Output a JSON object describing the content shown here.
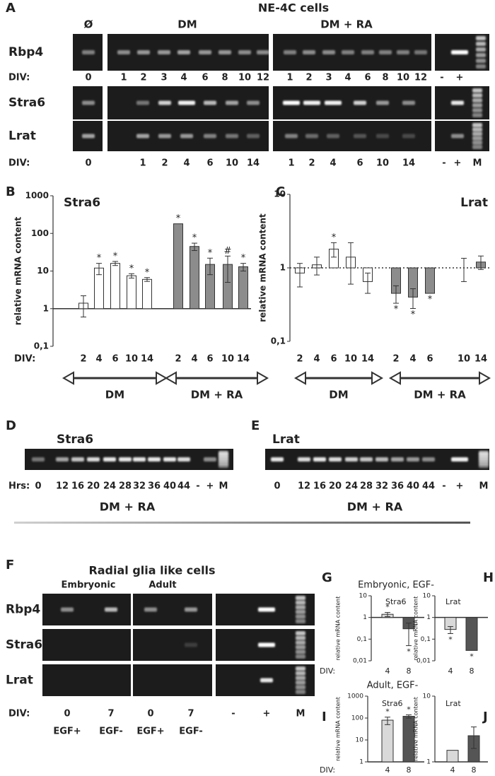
{
  "gels": {
    "A": {
      "letter": "A",
      "title": "NE-4C cells",
      "headers": [
        "Ø",
        "DM",
        "DM + RA"
      ],
      "rows": [
        "Rbp4",
        "Stra6",
        "Lrat"
      ],
      "lane_prefix": "DIV:",
      "lanes_top": [
        "0",
        "1",
        "2",
        "3",
        "4",
        "6",
        "8",
        "10",
        "12",
        "1",
        "2",
        "3",
        "4",
        "6",
        "8",
        "10",
        "12",
        "-",
        "+"
      ],
      "lanes_bottom": [
        "0",
        "1",
        "2",
        "4",
        "6",
        "10",
        "14",
        "1",
        "2",
        "4",
        "6",
        "10",
        "14",
        "-",
        "+",
        "M"
      ]
    },
    "D": {
      "letter": "D",
      "title": "Stra6",
      "lane_prefix": "Hrs:",
      "lanes": [
        "0",
        "12",
        "16",
        "20",
        "24",
        "28",
        "32",
        "36",
        "40",
        "44",
        "-",
        "+",
        "M"
      ],
      "condition": "DM + RA"
    },
    "E": {
      "letter": "E",
      "title": "Lrat",
      "lanes": [
        "0",
        "12",
        "16",
        "20",
        "24",
        "28",
        "32",
        "36",
        "40",
        "44",
        "-",
        "+",
        "M"
      ],
      "condition": "DM + RA"
    },
    "F": {
      "letter": "F",
      "title": "Radial glia like cells",
      "headers": [
        "Embryonic",
        "Adult"
      ],
      "rows": [
        "Rbp4",
        "Stra6",
        "Lrat"
      ],
      "lane_prefix": "DIV:",
      "lanes": [
        "0",
        "7",
        "0",
        "7",
        "-",
        "+",
        "M"
      ],
      "treatments": [
        "EGF+",
        "EGF-",
        "EGF+",
        "EGF-"
      ]
    }
  },
  "chart_data": [
    {
      "type": "bar",
      "letter": "B",
      "title": "Stra6",
      "ylabel": "relative mRNA content",
      "x_label": "DIV:",
      "log_scale": true,
      "ylim": [
        0.1,
        1000
      ],
      "yticks": [
        {
          "value": 0.1,
          "label": "0,1"
        },
        1,
        10,
        100,
        1000
      ],
      "baseline": 1,
      "categories": [
        "2",
        "4",
        "6",
        "10",
        "14"
      ],
      "series": [
        {
          "name": "DM",
          "color": "#ffffff",
          "values": [
            1.4,
            12,
            16,
            7.5,
            6
          ],
          "errors": [
            0.8,
            4,
            2,
            1,
            0.7
          ],
          "annotations": [
            null,
            "*",
            "*",
            "*",
            "*"
          ]
        },
        {
          "name": "DM + RA",
          "color": "#8c8c8c",
          "values": [
            180,
            45,
            15,
            15,
            13
          ],
          "errors": [
            null,
            10,
            7,
            10,
            3
          ],
          "annotations": [
            "*",
            "*",
            "*",
            "#",
            "*"
          ]
        }
      ]
    },
    {
      "type": "bar",
      "letter": "C",
      "title": "Lrat",
      "ylabel": "relative mRNA content",
      "log_scale": true,
      "ylim": [
        0.1,
        10
      ],
      "yticks": [
        {
          "value": 0.1,
          "label": "0,1"
        },
        1,
        10
      ],
      "baseline": 1,
      "categories": [
        "2",
        "4",
        "6",
        "10",
        "14"
      ],
      "series": [
        {
          "name": "DM",
          "color": "#ffffff",
          "values": [
            0.85,
            1.1,
            1.8,
            1.4,
            0.65
          ],
          "errors": [
            0.3,
            0.3,
            0.4,
            0.8,
            0.2
          ],
          "annotations": [
            null,
            null,
            "*",
            null,
            null
          ]
        },
        {
          "name": "DM + RA",
          "color": "#8c8c8c",
          "values": [
            0.45,
            0.4,
            0.45,
            1,
            1.2
          ],
          "errors": [
            0.12,
            0.12,
            null,
            0.35,
            0.25
          ],
          "annotations": [
            "*",
            "*",
            "*",
            null,
            null
          ]
        }
      ]
    },
    {
      "type": "bar",
      "letter": "G",
      "header": "Embryonic, EGF-",
      "title": "Stra6",
      "ylabel": "relative mRNA content",
      "x_label": "DIV:",
      "log_scale": true,
      "ylim": [
        0.01,
        10
      ],
      "yticks": [
        {
          "value": 0.01,
          "label": "0,01"
        },
        {
          "value": 0.1,
          "label": "0,1"
        },
        1,
        10
      ],
      "baseline": 1,
      "categories": [
        "4",
        "8"
      ],
      "colors": [
        "#d9d9d9",
        "#555555"
      ],
      "values": [
        1.4,
        0.3
      ],
      "errors": [
        0.3,
        0.25
      ],
      "annotations": [
        "*",
        "*"
      ]
    },
    {
      "type": "bar",
      "letter": "H",
      "title": "Lrat",
      "ylabel": "relative mRNA content",
      "log_scale": true,
      "ylim": [
        0.01,
        10
      ],
      "yticks": [
        {
          "value": 0.01,
          "label": "0,01"
        },
        {
          "value": 0.1,
          "label": "0,1"
        },
        1,
        10
      ],
      "baseline": 1,
      "categories": [
        "4",
        "8"
      ],
      "colors": [
        "#d9d9d9",
        "#555555"
      ],
      "values": [
        0.28,
        0.03
      ],
      "errors": [
        0.1,
        null
      ],
      "annotations": [
        "*",
        "*"
      ]
    },
    {
      "type": "bar",
      "letter": "I",
      "header": "Adult, EGF-",
      "title": "Stra6",
      "ylabel": "relative mRNA content",
      "x_label": "DIV:",
      "log_scale": true,
      "ylim": [
        1,
        1000
      ],
      "yticks": [
        1,
        10,
        100,
        1000
      ],
      "baseline": 1,
      "categories": [
        "4",
        "8"
      ],
      "colors": [
        "#d9d9d9",
        "#555555"
      ],
      "values": [
        80,
        120
      ],
      "errors": [
        30,
        20
      ],
      "annotations": [
        "*",
        "*"
      ]
    },
    {
      "type": "bar",
      "letter": "J",
      "title": "Lrat",
      "ylabel": "relative mRNA content",
      "log_scale": true,
      "ylim": [
        1,
        10
      ],
      "yticks": [
        1,
        10
      ],
      "baseline": 1,
      "categories": [
        "4",
        "8"
      ],
      "colors": [
        "#d9d9d9",
        "#555555"
      ],
      "values": [
        1.5,
        2.5
      ],
      "errors": [
        null,
        0.9
      ]
    }
  ]
}
